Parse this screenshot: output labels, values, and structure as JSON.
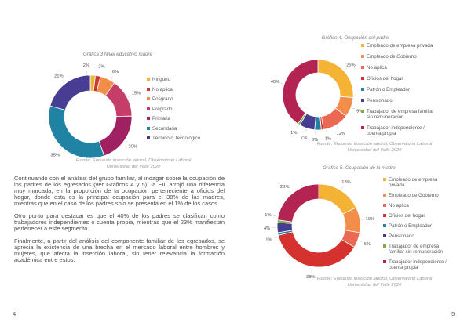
{
  "document": {
    "left_page": {
      "page_number": "4",
      "paragraphs": [
        "Continuando con el análisis del grupo familiar, al indagar sobre la ocupación de los padres de los egresados (ver Gráficos 4 y 5), la EIL arrojó una diferencia muy marcada, en la proporción de la ocupación perteneciente a oficios del hogar, donde esta es la principal ocupación para el 38% de las madres, mientras que en el caso de los padres solo se presenta en el 1% de los casos.",
        "Otro punto para destacar es que el 40% de los padres se clasifican como trabajadores independientes o cuenta propia, mientras que el 23% manifiestan pertenecer a este segmento.",
        "Finalmente, a partir del análisis del componente familiar de los egresados, se aprecia la existencia de una brecha en el mercado laboral entre hombres y mujeres, que afecta la inserción laboral, sin tener relevancia la formación académica entre estos."
      ]
    },
    "right_page": {
      "page_number": "5"
    }
  },
  "chart_data": [
    {
      "type": "pie",
      "subtype": "donut",
      "title": "Gráfica 3 Nivel educativo madre",
      "legend_position": "right",
      "source_lines": [
        "Fuente: Encuesta inserción laboral, Observatorio Laboral",
        "Universidad del Valle 2020"
      ],
      "segments": [
        {
          "label": "Ninguno",
          "value": 2,
          "display": "2%",
          "color": "#F5B335",
          "label_angle_offset": -8
        },
        {
          "label": "No aplica",
          "value": 2,
          "display": "2%",
          "color": "#C8392F",
          "label_angle_offset": 2
        },
        {
          "label": "Posgrado",
          "value": 6,
          "display": "6%",
          "color": "#F28E49",
          "label_angle_offset": 4
        },
        {
          "label": "Pregrado",
          "value": 15,
          "display": "15%",
          "color": "#C43E67",
          "label_angle_offset": 0
        },
        {
          "label": "Primaria",
          "value": 20,
          "display": "20%",
          "color": "#A02161",
          "label_angle_offset": 0
        },
        {
          "label": "Secundaria",
          "value": 35,
          "display": "35%",
          "color": "#2083A4",
          "label_angle_offset": 0
        },
        {
          "label": "Técnico o Tecnológico",
          "value": 21,
          "display": "21%",
          "color": "#473D92",
          "label_angle_offset": 0
        }
      ]
    },
    {
      "type": "pie",
      "subtype": "donut",
      "title": "Gráfico 4. Ocupación del padre",
      "legend_position": "right",
      "source_lines": [
        "Fuente: Encuesta inserción laboral, Observatorio Laboral",
        "Universidad del Valle 2020"
      ],
      "segments": [
        {
          "label": "Empleado de empresa privada",
          "value": 26,
          "display": "26%",
          "color": "#F5B335",
          "label_angle_offset": 0
        },
        {
          "label": "Empleado de Gobierno",
          "value": 9,
          "display": "9%",
          "color": "#F28E49",
          "label_angle_offset": 0
        },
        {
          "label": "No aplica",
          "value": 12,
          "display": "12%",
          "color": "#EB6852",
          "label_angle_offset": 0
        },
        {
          "label": "Oficios del hogar",
          "value": 1,
          "display": "1%",
          "color": "#D5322F",
          "label_angle_offset": -6
        },
        {
          "label": "Patrón o Empleador",
          "value": 3,
          "display": "3%",
          "color": "#2083A4",
          "label_angle_offset": 4
        },
        {
          "label": "Pensionado",
          "value": 7,
          "display": "7%",
          "color": "#473D92",
          "label_angle_offset": 0
        },
        {
          "label": "Trabajador de empresa familiar sin remuneración",
          "value": 1,
          "display": "1%",
          "color": "#7CAF3F",
          "label_angle_offset": 0
        },
        {
          "label": "Trabajador independiente / cuenta propia",
          "value": 40,
          "display": "40%",
          "color": "#B42453",
          "label_angle_offset": 0
        }
      ]
    },
    {
      "type": "pie",
      "subtype": "donut",
      "title": "Gráfico 5. Ocupación de la madre",
      "legend_position": "right",
      "source_lines": [
        "Fuente: Encuesta inserción laboral, Observatorio Laboral",
        "Universidad del Valle 2020"
      ],
      "segments": [
        {
          "label": "Empleado de empresa privada",
          "value": 18,
          "display": "18%",
          "color": "#F5B335",
          "label_angle_offset": 0
        },
        {
          "label": "Empleado de Gobierno",
          "value": 10,
          "display": "10%",
          "color": "#F28E49",
          "label_angle_offset": 0
        },
        {
          "label": "No aplica",
          "value": 6,
          "display": "6%",
          "color": "#EB6852",
          "label_angle_offset": 0
        },
        {
          "label": "Oficios del hogar",
          "value": 38,
          "display": "38%",
          "color": "#D5322F",
          "label_angle_offset": 0
        },
        {
          "label": "Patrón o Empleador",
          "value": 1,
          "display": "1%",
          "color": "#2083A4",
          "label_angle_offset": -4
        },
        {
          "label": "Pensionado",
          "value": 4,
          "display": "4%",
          "color": "#473D92",
          "label_angle_offset": 0
        },
        {
          "label": "Trabajador de empresa familiar sin remuneración",
          "value": 1,
          "display": "1%",
          "color": "#7CAF3F",
          "label_angle_offset": 6
        },
        {
          "label": "Trabajador independiente / cuenta propia",
          "value": 23,
          "display": "23%",
          "color": "#B42453",
          "label_angle_offset": 0
        }
      ]
    }
  ]
}
